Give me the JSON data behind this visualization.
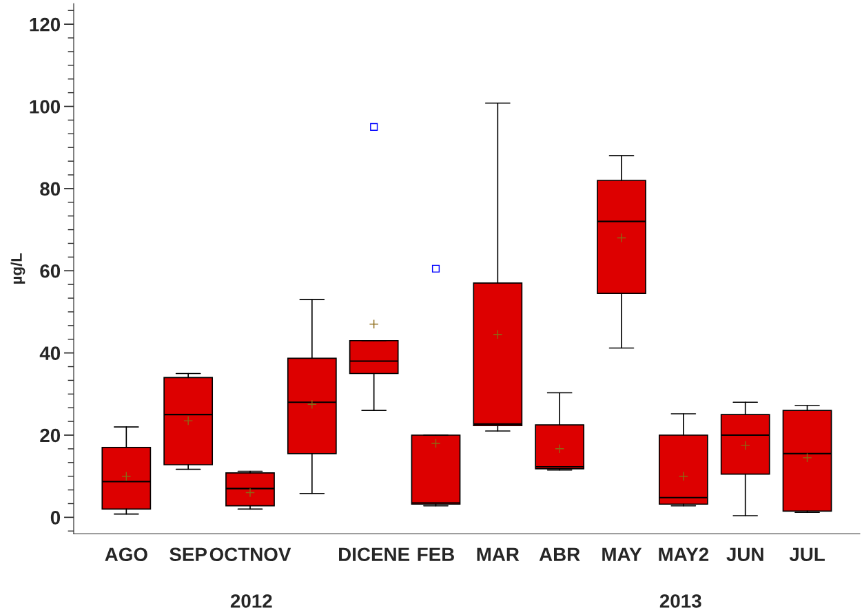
{
  "chart_data": {
    "type": "box",
    "ylabel": "µg/L",
    "categories": [
      "AGO",
      "SEP",
      "OCTNOV",
      null,
      "DICENE",
      "FEB",
      "MAR",
      "ABR",
      "MAY",
      "MAY2",
      "JUN",
      "JUL"
    ],
    "color": "#dd0000",
    "boxes": [
      {
        "low": 0.8,
        "q1": 2,
        "median": 8.7,
        "q3": 17,
        "high": 22,
        "mean": 10
      },
      {
        "low": 11.7,
        "q1": 12.8,
        "median": 25,
        "q3": 34,
        "high": 35,
        "mean": 23.5
      },
      {
        "low": 2,
        "q1": 2.8,
        "median": 7,
        "q3": 10.8,
        "high": 11.2,
        "mean": 6
      },
      {
        "low": 5.8,
        "q1": 15.5,
        "median": 28,
        "q3": 38.7,
        "high": 53,
        "mean": 27.5
      },
      {
        "low": 26,
        "q1": 35,
        "median": 38,
        "q3": 43,
        "high": 43,
        "mean": 47,
        "outliers": [
          95
        ]
      },
      {
        "low": 2.8,
        "q1": 3.2,
        "median": 3.5,
        "q3": 20,
        "high": 20,
        "mean": 18,
        "outliers": [
          60.5
        ]
      },
      {
        "low": 21,
        "q1": 22.3,
        "median": 22.7,
        "q3": 57,
        "high": 100.8,
        "mean": 44.5
      },
      {
        "low": 11.5,
        "q1": 11.8,
        "median": 12.3,
        "q3": 22.5,
        "high": 30.3,
        "mean": 16.7
      },
      {
        "low": 41.2,
        "q1": 54.5,
        "median": 72,
        "q3": 82,
        "high": 88,
        "mean": 68
      },
      {
        "low": 2.8,
        "q1": 3.2,
        "median": 4.8,
        "q3": 20,
        "high": 25.2,
        "mean": 10
      },
      {
        "low": 0.4,
        "q1": 10.5,
        "median": 20,
        "q3": 25,
        "high": 28,
        "mean": 17.5
      },
      {
        "low": 1.2,
        "q1": 1.5,
        "median": 15.5,
        "q3": 26,
        "high": 27.2,
        "mean": 14.5
      }
    ],
    "ylim": [
      -4,
      125
    ],
    "yticks": [
      0,
      20,
      40,
      60,
      80,
      100,
      120
    ],
    "annotations": [
      "2012",
      "2013"
    ]
  }
}
